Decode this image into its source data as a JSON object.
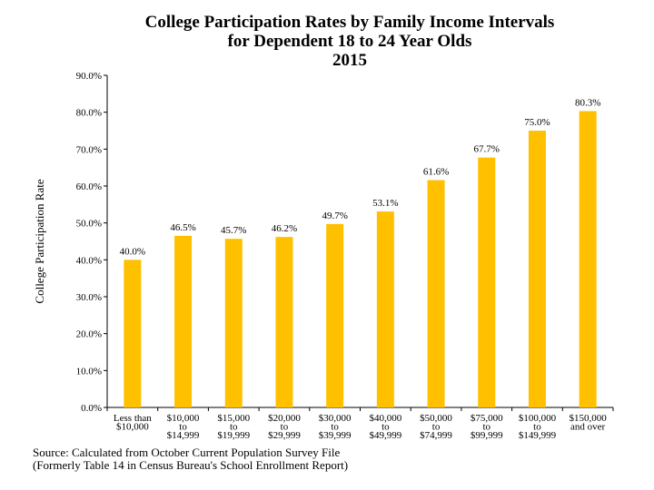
{
  "chart_data": {
    "type": "bar",
    "title_lines": [
      "College Participation Rates by Family Income Intervals",
      "for Dependent 18 to 24 Year Olds",
      "2015"
    ],
    "ylabel": "College Participation Rate",
    "xlabel": "",
    "ylim": [
      0,
      90
    ],
    "yticks": [
      "0.0%",
      "10.0%",
      "20.0%",
      "30.0%",
      "40.0%",
      "50.0%",
      "60.0%",
      "70.0%",
      "80.0%",
      "90.0%"
    ],
    "categories": [
      [
        "Less than",
        "$10,000"
      ],
      [
        "$10,000",
        "to",
        "$14,999"
      ],
      [
        "$15,000",
        "to",
        "$19,999"
      ],
      [
        "$20,000",
        "to",
        "$29,999"
      ],
      [
        "$30,000",
        "to",
        "$39,999"
      ],
      [
        "$40,000",
        "to",
        "$49,999"
      ],
      [
        "$50,000",
        "to",
        "$74,999"
      ],
      [
        "$75,000",
        "to",
        "$99,999"
      ],
      [
        "$100,000",
        "to",
        "$149,999"
      ],
      [
        "$150,000",
        "and over"
      ]
    ],
    "values": [
      40.0,
      46.5,
      45.7,
      46.2,
      49.7,
      53.1,
      61.6,
      67.7,
      75.0,
      80.3
    ],
    "data_labels": [
      "40.0%",
      "46.5%",
      "45.7%",
      "46.2%",
      "49.7%",
      "53.1%",
      "61.6%",
      "67.7%",
      "75.0%",
      "80.3%"
    ],
    "grid": false,
    "bar_color": "#FFC000"
  },
  "source": {
    "line1": "Source: Calculated from October Current Population Survey File",
    "line2": "(Formerly Table 14 in Census Bureau's School Enrollment Report)"
  }
}
